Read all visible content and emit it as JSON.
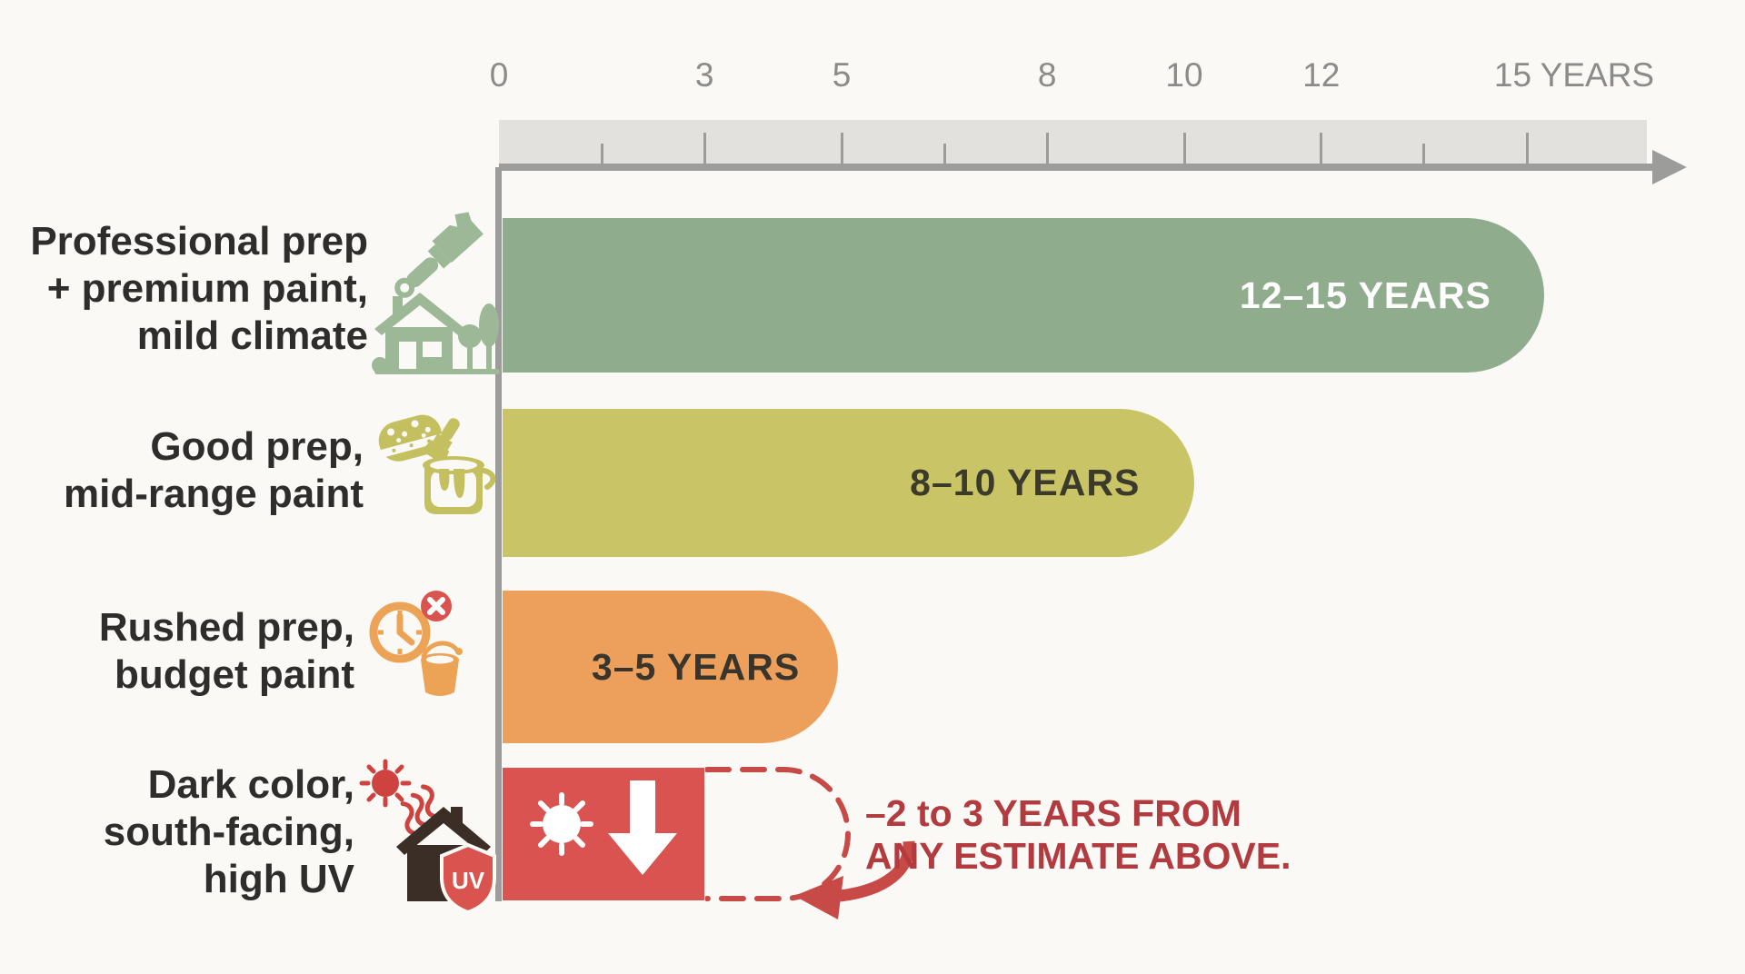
{
  "palette": {
    "bg": "#FAF9F6",
    "band": "#E2E1DE",
    "axis-line": "#9C9C9A",
    "axis-text": "#8B8B89",
    "text": "#2E2D2B",
    "green": "#8FAC8D",
    "icon-green": "#9CB897",
    "olive": "#C9C566",
    "icon-olive": "#C4BF5F",
    "orange": "#ECA05C",
    "icon-orange": "#EDA356",
    "red": "#D95450",
    "red-deep": "#C74A47",
    "sun": "#CE4340",
    "badge": "#D9534F",
    "house-dark": "#3A2E27",
    "annotation": "#B23B40"
  },
  "chart_data": {
    "type": "bar",
    "orientation": "horizontal",
    "title": "",
    "x_axis": {
      "unit": "YEARS",
      "range_years": [
        0,
        15
      ],
      "ticks": [
        {
          "value": 0,
          "label": "0"
        },
        {
          "value": 3,
          "label": "3"
        },
        {
          "value": 5,
          "label": "5"
        },
        {
          "value": 8,
          "label": "8"
        },
        {
          "value": 10,
          "label": "10"
        },
        {
          "value": 12,
          "label": "12"
        },
        {
          "value": 15,
          "label": "15 YEARS"
        }
      ],
      "major_tick_marks": [
        3,
        5,
        8,
        10,
        12,
        15
      ],
      "minor_tick_marks": [
        1.5,
        6.5,
        13.5
      ]
    },
    "rows": [
      {
        "category": "Professional prep + premium paint, mild climate",
        "label_lines": [
          "Professional prep",
          "+ premium paint,",
          "mild climate"
        ],
        "icons": [
          "paintbrush-icon",
          "house-trees-icon"
        ],
        "value_range_years": [
          12,
          15
        ],
        "bar_length_years": 15.25,
        "value_label": "12–15 YEARS",
        "color_key": "green",
        "label_color": "#FFFFFF"
      },
      {
        "category": "Good prep, mid-range paint",
        "label_lines": [
          "Good prep,",
          "mid-range paint"
        ],
        "icons": [
          "sponge-icon",
          "paint-can-brush-icon"
        ],
        "value_range_years": [
          8,
          10
        ],
        "bar_length_years": 10.15,
        "value_label": "8–10 YEARS",
        "color_key": "olive",
        "label_color": "#3B3A2B"
      },
      {
        "category": "Rushed prep, budget paint",
        "label_lines": [
          "Rushed prep,",
          "budget paint"
        ],
        "icons": [
          "clock-x-icon",
          "bucket-icon"
        ],
        "value_range_years": [
          3,
          5
        ],
        "bar_length_years": 4.95,
        "value_label": "3–5 YEARS",
        "color_key": "orange",
        "label_color": "#39342C"
      },
      {
        "category": "Dark color, south-facing, high UV",
        "label_lines": [
          "Dark color,",
          "south-facing,",
          "high UV"
        ],
        "icons": [
          "sun-icon",
          "house-dark-icon",
          "uv-shield-icon"
        ],
        "value_range_years": [
          -3,
          -2
        ],
        "bar_length_years": 3.0,
        "dashed_to_years": 5.0,
        "value_label": "",
        "color_key": "red",
        "label_color": "#FFFFFF",
        "bar_glyphs": [
          "sun-icon",
          "down-arrow-icon"
        ]
      }
    ]
  },
  "annotation": {
    "lines": [
      "–2 to 3 YEARS FROM",
      "ANY ESTIMATE ABOVE."
    ]
  },
  "uv_shield_text": "UV"
}
